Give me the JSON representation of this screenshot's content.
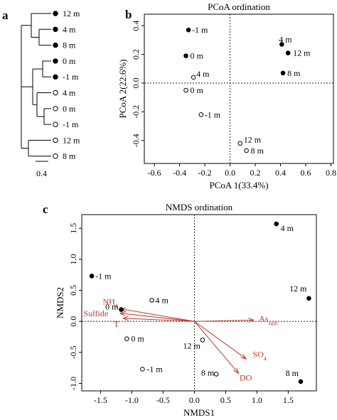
{
  "panels": {
    "a": "a",
    "b": "b",
    "c": "c"
  },
  "chart_data": [
    {
      "type": "dendrogram",
      "panel": "a",
      "leaves": [
        {
          "label": "12 m",
          "filled": true
        },
        {
          "label": "4 m",
          "filled": true
        },
        {
          "label": "8 m",
          "filled": true
        },
        {
          "label": "0 m",
          "filled": true
        },
        {
          "label": "-1 m",
          "filled": true
        },
        {
          "label": "4 m",
          "filled": false
        },
        {
          "label": "0 m",
          "filled": false
        },
        {
          "label": "-1 m",
          "filled": false
        },
        {
          "label": "12 m",
          "filled": false
        },
        {
          "label": "8 m",
          "filled": false
        }
      ],
      "scale_bar": "0.4"
    },
    {
      "type": "scatter",
      "panel": "b",
      "title": "PCoA ordination",
      "xlabel": "PCoA 1(33.4%)",
      "ylabel": "PCoA 2(22.6%)",
      "xlim": [
        -0.68,
        0.82
      ],
      "ylim": [
        -0.56,
        0.48
      ],
      "xticks": [
        -0.6,
        -0.4,
        -0.2,
        0.0,
        0.2,
        0.4,
        0.6,
        0.8
      ],
      "xtick_labels": [
        "-0.6",
        "-0.4",
        "-0.2",
        "0.0",
        "0.2",
        "0.4",
        "0.6",
        "0.8"
      ],
      "yticks": [
        -0.4,
        -0.2,
        0.0,
        0.2,
        0.4
      ],
      "ytick_labels": [
        "-0.4",
        "-0.2",
        "0.0",
        "0.2",
        "0.4"
      ],
      "points": [
        {
          "label": "-1 m",
          "x": -0.33,
          "y": 0.37,
          "filled": true
        },
        {
          "label": "0 m",
          "x": -0.35,
          "y": 0.19,
          "filled": true
        },
        {
          "label": "4 m",
          "x": 0.41,
          "y": 0.27,
          "filled": true
        },
        {
          "label": "12 m",
          "x": 0.46,
          "y": 0.21,
          "filled": true
        },
        {
          "label": "8 m",
          "x": 0.42,
          "y": 0.07,
          "filled": true
        },
        {
          "label": "4 m",
          "x": -0.29,
          "y": 0.04,
          "filled": false
        },
        {
          "label": "0 m",
          "x": -0.35,
          "y": -0.05,
          "filled": false
        },
        {
          "label": "-1 m",
          "x": -0.23,
          "y": -0.22,
          "filled": false
        },
        {
          "label": "12 m",
          "x": 0.08,
          "y": -0.42,
          "filled": false
        },
        {
          "label": "8 m",
          "x": 0.13,
          "y": -0.47,
          "filled": false
        }
      ]
    },
    {
      "type": "scatter",
      "panel": "c",
      "title": "NMDS ordination",
      "xlabel": "NMDS1",
      "ylabel": "NMDS2",
      "xlim": [
        -1.8,
        1.95
      ],
      "ylim": [
        -1.12,
        1.72
      ],
      "xticks": [
        -1.5,
        -1.0,
        -0.5,
        0.0,
        0.5,
        1.0,
        1.5
      ],
      "xtick_labels": [
        "-1.5",
        "-1.0",
        "-0.5",
        "0.0",
        "0.5",
        "1.0",
        "1.5"
      ],
      "yticks": [
        -1.0,
        -0.5,
        0.0,
        0.5,
        1.0,
        1.5
      ],
      "ytick_labels": [
        "-1.0",
        "-0.5",
        "0.0",
        "0.5",
        "1.0",
        "1.5"
      ],
      "points": [
        {
          "label": "4 m",
          "x": 1.31,
          "y": 1.57,
          "filled": true
        },
        {
          "label": "-1 m",
          "x": -1.64,
          "y": 0.73,
          "filled": true
        },
        {
          "label": "12 m",
          "x": 1.83,
          "y": 0.37,
          "filled": true
        },
        {
          "label": "0 m",
          "x": -1.17,
          "y": 0.19,
          "filled": true
        },
        {
          "label": "8 m",
          "x": 1.7,
          "y": -0.97,
          "filled": true
        },
        {
          "label": "4 m",
          "x": -0.68,
          "y": 0.34,
          "filled": false
        },
        {
          "label": "0 m",
          "x": -1.08,
          "y": -0.28,
          "filled": false
        },
        {
          "label": "12 m",
          "x": 0.13,
          "y": -0.3,
          "filled": false
        },
        {
          "label": "-1 m",
          "x": -0.83,
          "y": -0.77,
          "filled": false
        },
        {
          "label": "8 m",
          "x": 0.35,
          "y": -0.85,
          "filled": false
        }
      ],
      "vectors": [
        {
          "name": "NH",
          "sub": "4",
          "x": -1.17,
          "y": 0.2
        },
        {
          "name": "Sulfide",
          "sub": "",
          "x": -1.18,
          "y": 0.13
        },
        {
          "name": "T",
          "sub": "",
          "x": -1.13,
          "y": 0.05
        },
        {
          "name": "As",
          "sub": "sum",
          "x": 0.94,
          "y": 0.02
        },
        {
          "name": "SO",
          "sub": "4",
          "x": 0.82,
          "y": -0.6
        },
        {
          "name": "DO",
          "sub": "",
          "x": 0.7,
          "y": -0.83
        }
      ],
      "vector_color": "#c0392b"
    }
  ]
}
